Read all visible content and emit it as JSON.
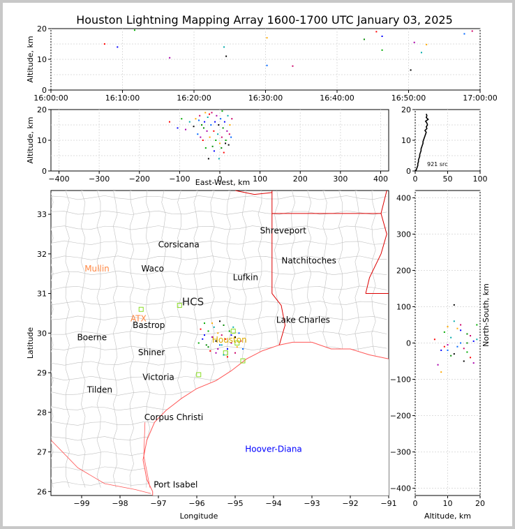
{
  "title": "Houston Lightning Mapping Array 1600-1700 UTC January 03, 2025",
  "colors": {
    "axis": "#000000",
    "grid": "#dddddd",
    "state_border": "#dd0000",
    "county": "#c0c0c0",
    "coast": "#ff5555",
    "station": "#88dd22"
  },
  "panels": {
    "time_altitude": {
      "ylabel": "Altitude, km",
      "yticks": [
        "0",
        "10",
        "20"
      ],
      "xticks": [
        "16:00:00",
        "16:10:00",
        "16:20:00",
        "16:30:00",
        "16:40:00",
        "16:50:00",
        "17:00:00"
      ]
    },
    "ew_altitude": {
      "ylabel": "Altitude, km",
      "xlabel": "East-West, km",
      "yticks": [
        "0",
        "10",
        "20"
      ],
      "xticks": [
        "−400",
        "−300",
        "−200",
        "−100",
        "0",
        "100",
        "200",
        "300",
        "400"
      ]
    },
    "histogram": {
      "yticks": [
        "0",
        "10",
        "20"
      ],
      "xticks": [
        "0",
        "50",
        "100"
      ],
      "annotation": "921 src"
    },
    "map": {
      "xlabel": "Longitude",
      "ylabel": "Latitude",
      "yticks": [
        "26",
        "27",
        "28",
        "29",
        "30",
        "31",
        "32",
        "33"
      ],
      "xticks": [
        "−99",
        "−98",
        "−97",
        "−96",
        "−95",
        "−94",
        "−93",
        "−92",
        "−91"
      ]
    },
    "ns_altitude": {
      "ylabel": "North-South, km",
      "xlabel": "Altitude, km",
      "yticks": [
        "400",
        "300",
        "200",
        "100",
        "0",
        "−100",
        "−200",
        "−300",
        "−400"
      ],
      "xticks": [
        "0",
        "10",
        "20"
      ]
    }
  },
  "cities": [
    {
      "name": "Shreveport",
      "lon": -93.75,
      "lat": 32.52,
      "color": "#000000"
    },
    {
      "name": "Corsicana",
      "lon": -96.47,
      "lat": 32.16,
      "color": "#000000"
    },
    {
      "name": "Natchitoches",
      "lon": -93.08,
      "lat": 31.76,
      "color": "#000000"
    },
    {
      "name": "Mullin",
      "lon": -98.6,
      "lat": 31.56,
      "color": "#ff8844"
    },
    {
      "name": "Waco",
      "lon": -97.15,
      "lat": 31.56,
      "color": "#000000"
    },
    {
      "name": "Lufkin",
      "lon": -94.73,
      "lat": 31.34,
      "color": "#000000"
    },
    {
      "name": "HCS",
      "lon": -96.1,
      "lat": 30.7,
      "color": "#222222"
    },
    {
      "name": "ATX",
      "lon": -97.52,
      "lat": 30.3,
      "color": "#ff8844"
    },
    {
      "name": "Bastrop",
      "lon": -97.25,
      "lat": 30.13,
      "color": "#000000"
    },
    {
      "name": "Lake Charles",
      "lon": -93.23,
      "lat": 30.26,
      "color": "#000000"
    },
    {
      "name": "Boerne",
      "lon": -98.73,
      "lat": 29.82,
      "color": "#000000"
    },
    {
      "name": "Houston",
      "lon": -95.15,
      "lat": 29.76,
      "color": "#ddaa00"
    },
    {
      "name": "Shiner",
      "lon": -97.18,
      "lat": 29.44,
      "color": "#000000"
    },
    {
      "name": "Victoria",
      "lon": -97.0,
      "lat": 28.82,
      "color": "#000000"
    },
    {
      "name": "Tilden",
      "lon": -98.53,
      "lat": 28.5,
      "color": "#000000"
    },
    {
      "name": "Corpus Christi",
      "lon": -96.6,
      "lat": 27.8,
      "color": "#000000"
    },
    {
      "name": "Hoover-Diana",
      "lon": -94.0,
      "lat": 27.0,
      "color": "#0000ff"
    },
    {
      "name": "Port Isabel",
      "lon": -96.55,
      "lat": 26.1,
      "color": "#000000"
    }
  ],
  "chart_data": [
    {
      "type": "scatter",
      "title": "Houston Lightning Mapping Array 1600-1700 UTC January 03, 2025",
      "panel": "time_altitude",
      "xlabel": "",
      "ylabel": "Altitude, km",
      "xlim": [
        "16:00:00",
        "17:00:00"
      ],
      "ylim": [
        0,
        20
      ],
      "points": [
        [
          7.5,
          15
        ],
        [
          9.3,
          14
        ],
        [
          11.7,
          19.5
        ],
        [
          16.6,
          10.5
        ],
        [
          24.2,
          14
        ],
        [
          24.5,
          11
        ],
        [
          30.2,
          17
        ],
        [
          30.2,
          8
        ],
        [
          33.8,
          7.8
        ],
        [
          43.8,
          16.5
        ],
        [
          45.5,
          19
        ],
        [
          46.3,
          17.5
        ],
        [
          46.3,
          13
        ],
        [
          50.8,
          15.5
        ],
        [
          51.8,
          12.2
        ],
        [
          50.3,
          6.5
        ],
        [
          52.5,
          14.8
        ],
        [
          57.8,
          18.3
        ],
        [
          58.9,
          19.2
        ]
      ]
    },
    {
      "type": "scatter",
      "panel": "ew_altitude",
      "xlabel": "East-West, km",
      "ylabel": "Altitude, km",
      "xlim": [
        -420,
        420
      ],
      "ylim": [
        0,
        20
      ],
      "points": [
        [
          -125,
          16
        ],
        [
          -105,
          14
        ],
        [
          -95,
          17
        ],
        [
          -85,
          13.5
        ],
        [
          -75,
          16
        ],
        [
          -65,
          14.5
        ],
        [
          -60,
          17
        ],
        [
          -55,
          12
        ],
        [
          -50,
          18
        ],
        [
          -45,
          15
        ],
        [
          -42,
          10
        ],
        [
          -38,
          16
        ],
        [
          -35,
          7.5
        ],
        [
          -32,
          13
        ],
        [
          -30,
          17.5
        ],
        [
          -28,
          4
        ],
        [
          -25,
          11
        ],
        [
          -22,
          15
        ],
        [
          -20,
          19
        ],
        [
          -18,
          8
        ],
        [
          -15,
          13
        ],
        [
          -12,
          16
        ],
        [
          -10,
          10
        ],
        [
          -8,
          18
        ],
        [
          -5,
          12
        ],
        [
          -3,
          15
        ],
        [
          0,
          9
        ],
        [
          2,
          17
        ],
        [
          5,
          11
        ],
        [
          8,
          14
        ],
        [
          10,
          6
        ],
        [
          12,
          16
        ],
        [
          15,
          10
        ],
        [
          18,
          13
        ],
        [
          20,
          18
        ],
        [
          22,
          8.5
        ],
        [
          25,
          15
        ],
        [
          28,
          11
        ],
        [
          30,
          17
        ],
        [
          -40,
          14
        ],
        [
          -26,
          18.5
        ],
        [
          -14,
          6.5
        ],
        [
          6,
          19.5
        ],
        [
          -48,
          11
        ],
        [
          -2,
          4
        ],
        [
          14,
          9
        ],
        [
          -36,
          19
        ],
        [
          -52,
          16.5
        ],
        [
          24,
          12
        ],
        [
          4,
          7.5
        ]
      ]
    },
    {
      "type": "line",
      "panel": "histogram",
      "xlabel": "",
      "ylabel": "",
      "xlim": [
        0,
        100
      ],
      "ylim": [
        0,
        20
      ],
      "annotation": "921 src",
      "x": [
        1,
        2,
        3,
        4,
        4,
        5,
        5,
        6,
        7,
        7,
        8,
        9,
        9,
        10,
        11,
        12,
        12,
        13,
        14,
        15,
        16,
        17,
        15,
        18,
        17,
        19,
        18,
        16,
        20,
        17,
        18,
        17
      ],
      "y": [
        0.0,
        0.6,
        1.2,
        1.8,
        2.4,
        3.0,
        3.6,
        4.2,
        4.8,
        5.4,
        6.0,
        6.6,
        7.2,
        7.8,
        8.4,
        9.0,
        9.6,
        10.2,
        10.8,
        11.4,
        12.0,
        12.6,
        13.2,
        13.8,
        14.4,
        15.0,
        15.6,
        16.2,
        16.8,
        17.4,
        18.0,
        18.6
      ]
    },
    {
      "type": "scatter",
      "panel": "map",
      "xlabel": "Longitude",
      "ylabel": "Latitude",
      "xlim": [
        -99.8,
        -91
      ],
      "ylim": [
        25.9,
        33.6
      ],
      "points": [
        [
          -95.9,
          30.1
        ],
        [
          -95.8,
          29.95
        ],
        [
          -95.7,
          30.05
        ],
        [
          -95.6,
          29.9
        ],
        [
          -95.55,
          30.15
        ],
        [
          -95.5,
          29.8
        ],
        [
          -95.45,
          30.0
        ],
        [
          -95.4,
          29.7
        ],
        [
          -95.35,
          29.95
        ],
        [
          -95.3,
          30.2
        ],
        [
          -95.25,
          29.85
        ],
        [
          -95.2,
          29.6
        ],
        [
          -95.15,
          30.05
        ],
        [
          -95.1,
          29.75
        ],
        [
          -95.05,
          30.15
        ],
        [
          -95.0,
          29.9
        ],
        [
          -94.95,
          29.65
        ],
        [
          -94.9,
          30.0
        ],
        [
          -94.85,
          29.8
        ],
        [
          -95.75,
          29.7
        ],
        [
          -95.65,
          29.55
        ],
        [
          -95.85,
          29.85
        ],
        [
          -95.95,
          29.75
        ],
        [
          -95.5,
          29.5
        ],
        [
          -95.3,
          29.45
        ],
        [
          -95.4,
          30.3
        ],
        [
          -95.6,
          30.25
        ],
        [
          -94.8,
          29.6
        ],
        [
          -95.0,
          29.5
        ],
        [
          -95.7,
          29.65
        ],
        [
          -95.2,
          29.4
        ],
        [
          -95.1,
          29.95
        ],
        [
          -95.8,
          30.25
        ],
        [
          -95.45,
          29.6
        ],
        [
          -95.35,
          29.7
        ]
      ]
    },
    {
      "type": "scatter",
      "panel": "ns_altitude",
      "xlabel": "Altitude, km",
      "ylabel": "North-South, km",
      "xlim": [
        0,
        20
      ],
      "ylim": [
        -420,
        420
      ],
      "points": [
        [
          6,
          10
        ],
        [
          8,
          -20
        ],
        [
          9,
          30
        ],
        [
          10,
          -5
        ],
        [
          11,
          15
        ],
        [
          12,
          -30
        ],
        [
          13,
          40
        ],
        [
          14,
          0
        ],
        [
          15,
          -15
        ],
        [
          16,
          25
        ],
        [
          17,
          -40
        ],
        [
          18,
          5
        ],
        [
          19,
          50
        ],
        [
          7,
          -60
        ],
        [
          12,
          60
        ],
        [
          15,
          -50
        ],
        [
          10,
          45
        ],
        [
          13,
          -10
        ],
        [
          17,
          20
        ],
        [
          11,
          -35
        ],
        [
          9,
          -10
        ],
        [
          14,
          35
        ],
        [
          16,
          -25
        ],
        [
          18,
          -55
        ],
        [
          19,
          10
        ],
        [
          12,
          105
        ],
        [
          8,
          -80
        ],
        [
          10,
          -20
        ],
        [
          14,
          50
        ],
        [
          16,
          0
        ]
      ]
    }
  ]
}
